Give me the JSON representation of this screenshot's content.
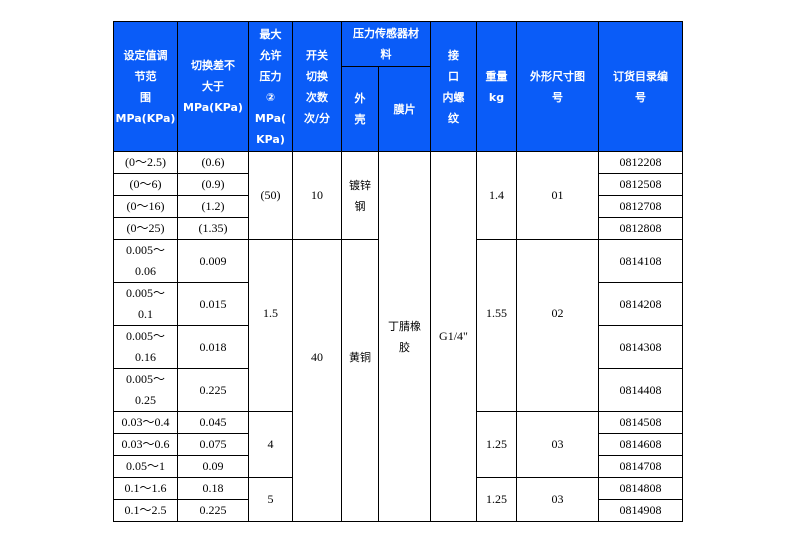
{
  "header": {
    "setting_range": [
      "设定值调",
      "节范",
      "围",
      "MPa(KPa)"
    ],
    "switch_diff": [
      "切换差不",
      "大于",
      "MPa(KPa)"
    ],
    "max_pressure": [
      "最大",
      "允许",
      "压力",
      "②",
      "MPa(",
      "KPa)"
    ],
    "switch_count": [
      "开关",
      "切换",
      "次数",
      "次/分"
    ],
    "sensor_material": [
      "压力传感器材",
      "料"
    ],
    "shell": [
      "外",
      "壳"
    ],
    "diaphragm": "膜片",
    "port": [
      "接",
      "口",
      "内螺",
      "纹"
    ],
    "weight": [
      "重量",
      "kg"
    ],
    "dimension": [
      "外形尺寸图",
      "号"
    ],
    "order_no": [
      "订货目录编",
      "号"
    ]
  },
  "rows": [
    {
      "range": "(0～2.5)",
      "diff": "(0.6)",
      "order": "0812208"
    },
    {
      "range": "(0～6)",
      "diff": "(0.9)",
      "order": "0812508"
    },
    {
      "range": "(0～16)",
      "diff": "(1.2)",
      "order": "0812708"
    },
    {
      "range": "(0～25)",
      "diff": "(1.35)",
      "order": "0812808"
    },
    {
      "range": "0.005～0.06",
      "diff": "0.009",
      "order": "0814108"
    },
    {
      "range": "0.005～0.1",
      "diff": "0.015",
      "order": "0814208"
    },
    {
      "range": "0.005～0.16",
      "diff": "0.018",
      "order": "0814308"
    },
    {
      "range": "0.005～0.25",
      "diff": "0.225",
      "order": "0814408"
    },
    {
      "range": "0.03～0.4",
      "diff": "0.045",
      "order": "0814508"
    },
    {
      "range": "0.03～0.6",
      "diff": "0.075",
      "order": "0814608"
    },
    {
      "range": "0.05～1",
      "diff": "0.09",
      "order": "0814708"
    },
    {
      "range": "0.1～1.6",
      "diff": "0.18",
      "order": "0814808"
    },
    {
      "range": "0.1～2.5",
      "diff": "0.225",
      "order": "0814908"
    }
  ],
  "max_pressure_groups": [
    "(50)",
    "1.5",
    "4",
    "5"
  ],
  "switch_count_groups": [
    "10",
    "40"
  ],
  "shell_groups": [
    "镀锌钢",
    "黄铜"
  ],
  "diaphragm_value": "丁腈橡胶",
  "port_value": "G1/4\"",
  "weight_groups": [
    "1.4",
    "1.55",
    "1.25",
    "1.25"
  ],
  "dimension_groups": [
    "01",
    "02",
    "03",
    "03"
  ],
  "colors": {
    "header_bg": "#0a5cf8",
    "header_text": "#ffffff"
  }
}
